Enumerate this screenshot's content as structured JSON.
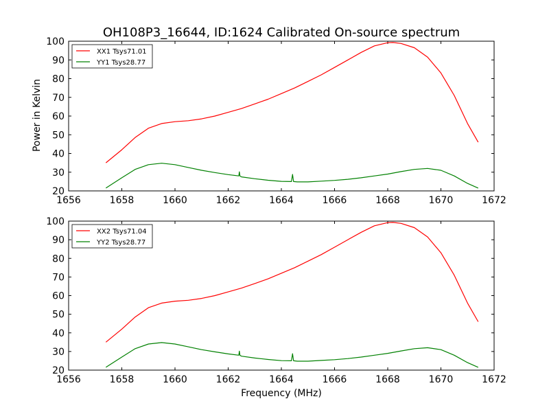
{
  "figure": {
    "title": "OH108P3_16644, ID:1624 Calibrated On-source spectrum",
    "ylabel": "Power in Kelvin",
    "xlabel": "Frequency (MHz)"
  },
  "chart_data": [
    {
      "type": "line",
      "title": "OH108P3_16644, ID:1624 Calibrated On-source spectrum",
      "xlabel": "",
      "ylabel": "Power in Kelvin",
      "xlim": [
        1656,
        1672
      ],
      "ylim": [
        20,
        100
      ],
      "xticks": [
        "1656",
        "1658",
        "1660",
        "1662",
        "1664",
        "1666",
        "1668",
        "1670",
        "1672"
      ],
      "yticks": [
        "20",
        "30",
        "40",
        "50",
        "60",
        "70",
        "80",
        "90",
        "100"
      ],
      "legend_position": "top-left",
      "series": [
        {
          "name": "XX1 Tsys71.01",
          "color": "#ff0000",
          "x": [
            1657.4,
            1658.0,
            1658.5,
            1659.0,
            1659.5,
            1660.0,
            1660.5,
            1661.0,
            1661.5,
            1662.0,
            1662.5,
            1663.0,
            1663.5,
            1664.0,
            1664.5,
            1665.0,
            1665.5,
            1666.0,
            1666.5,
            1667.0,
            1667.5,
            1668.0,
            1668.2,
            1668.5,
            1669.0,
            1669.5,
            1670.0,
            1670.5,
            1671.0,
            1671.4
          ],
          "y": [
            35,
            42,
            48.5,
            53.5,
            56,
            57,
            57.5,
            58.5,
            60,
            62,
            64,
            66.5,
            69,
            72,
            75,
            78.5,
            82,
            86,
            90,
            94,
            97.5,
            99.2,
            99.3,
            98.8,
            96.5,
            91.5,
            83,
            71,
            56,
            46
          ]
        },
        {
          "name": "YY1 Tsys28.77",
          "color": "#008000",
          "x": [
            1657.4,
            1658.0,
            1658.5,
            1659.0,
            1659.5,
            1660.0,
            1660.5,
            1661.0,
            1661.5,
            1662.0,
            1662.4,
            1662.42,
            1662.44,
            1662.5,
            1663.0,
            1663.5,
            1664.0,
            1664.38,
            1664.42,
            1664.46,
            1664.6,
            1665.0,
            1665.5,
            1666.0,
            1666.5,
            1667.0,
            1667.5,
            1668.0,
            1668.5,
            1669.0,
            1669.5,
            1670.0,
            1670.5,
            1671.0,
            1671.4
          ],
          "y": [
            21.5,
            27,
            31.5,
            34,
            34.8,
            34,
            32.5,
            31,
            29.8,
            28.7,
            28,
            30.2,
            28,
            27.5,
            26.5,
            25.7,
            25.1,
            25,
            28.8,
            25,
            24.8,
            24.8,
            25.2,
            25.6,
            26.2,
            27,
            28,
            29,
            30.3,
            31.5,
            32,
            31,
            28,
            24,
            21.5
          ]
        }
      ]
    },
    {
      "type": "line",
      "title": "",
      "xlabel": "Frequency (MHz)",
      "ylabel": "",
      "xlim": [
        1656,
        1672
      ],
      "ylim": [
        20,
        100
      ],
      "xticks": [
        "1656",
        "1658",
        "1660",
        "1662",
        "1664",
        "1666",
        "1668",
        "1670",
        "1672"
      ],
      "yticks": [
        "20",
        "30",
        "40",
        "50",
        "60",
        "70",
        "80",
        "90",
        "100"
      ],
      "legend_position": "top-left",
      "series": [
        {
          "name": "XX2 Tsys71.04",
          "color": "#ff0000",
          "x": [
            1657.4,
            1658.0,
            1658.5,
            1659.0,
            1659.5,
            1660.0,
            1660.5,
            1661.0,
            1661.5,
            1662.0,
            1662.5,
            1663.0,
            1663.5,
            1664.0,
            1664.5,
            1665.0,
            1665.5,
            1666.0,
            1666.5,
            1667.0,
            1667.5,
            1668.0,
            1668.2,
            1668.5,
            1669.0,
            1669.5,
            1670.0,
            1670.5,
            1671.0,
            1671.4
          ],
          "y": [
            35,
            42,
            48.5,
            53.5,
            56,
            57,
            57.5,
            58.5,
            60,
            62,
            64,
            66.5,
            69,
            72,
            75,
            78.5,
            82,
            86,
            90,
            94,
            97.5,
            99.2,
            99.3,
            98.8,
            96.5,
            91.5,
            83,
            71,
            56,
            46
          ]
        },
        {
          "name": "YY2 Tsys28.77",
          "color": "#008000",
          "x": [
            1657.4,
            1658.0,
            1658.5,
            1659.0,
            1659.5,
            1660.0,
            1660.5,
            1661.0,
            1661.5,
            1662.0,
            1662.4,
            1662.42,
            1662.44,
            1662.5,
            1663.0,
            1663.5,
            1664.0,
            1664.38,
            1664.42,
            1664.46,
            1664.6,
            1665.0,
            1665.5,
            1666.0,
            1666.5,
            1667.0,
            1667.5,
            1668.0,
            1668.5,
            1669.0,
            1669.5,
            1670.0,
            1670.5,
            1671.0,
            1671.4
          ],
          "y": [
            21.5,
            27,
            31.5,
            34,
            34.8,
            34,
            32.5,
            31,
            29.8,
            28.7,
            28,
            30.2,
            28,
            27.5,
            26.5,
            25.7,
            25.1,
            25,
            28.8,
            25,
            24.8,
            24.8,
            25.2,
            25.6,
            26.2,
            27,
            28,
            29,
            30.3,
            31.5,
            32,
            31,
            28,
            24,
            21.5
          ]
        }
      ]
    }
  ]
}
